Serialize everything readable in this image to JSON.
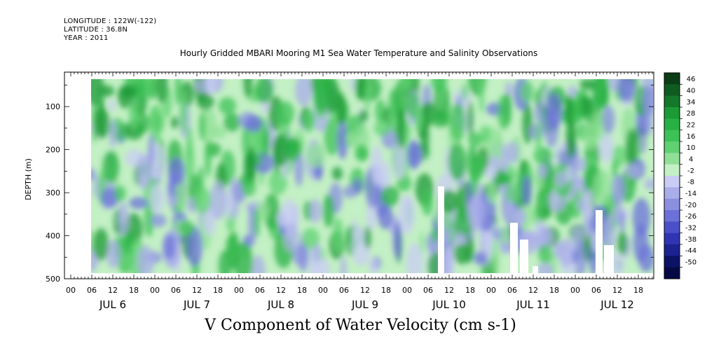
{
  "header": {
    "longitude": "LONGITUDE : 122W(-122)",
    "latitude": "LATITUDE : 36.8N",
    "year": "YEAR : 2011"
  },
  "chart_data": {
    "type": "heatmap",
    "title": "Hourly Gridded MBARI Mooring M1 Sea Water Temperature and Salinity Observations",
    "xlabel": "V Component of Water Velocity (cm s-1)",
    "ylabel": "DEPTH (m)",
    "ylim": [
      500,
      20
    ],
    "y_ticks": [
      100,
      200,
      300,
      400,
      500
    ],
    "x_hour_labels": [
      "00",
      "06",
      "12",
      "18",
      "00",
      "06",
      "12",
      "18",
      "00",
      "06",
      "12",
      "18",
      "00",
      "06",
      "12",
      "18",
      "00",
      "06",
      "12",
      "18",
      "00",
      "06",
      "12",
      "18",
      "00",
      "06",
      "12",
      "18"
    ],
    "x_day_labels": [
      "JUL 6",
      "JUL 7",
      "JUL 8",
      "JUL 9",
      "JUL 10",
      "JUL 11",
      "JUL 12"
    ],
    "colorbar": {
      "levels": [
        46,
        40,
        34,
        28,
        22,
        16,
        10,
        4,
        -2,
        -8,
        -14,
        -20,
        -26,
        -32,
        -38,
        -44,
        -50
      ],
      "colors": [
        "#0b3d16",
        "#0f5c20",
        "#14782a",
        "#1c9a36",
        "#27b043",
        "#3dc257",
        "#5fd172",
        "#8fe096",
        "#c3f0c4",
        "#c9cdf4",
        "#a9ade8",
        "#8a8fe0",
        "#6b71d8",
        "#4a50c8",
        "#2f35b2",
        "#1c228f",
        "#0c1266",
        "#050a45"
      ]
    },
    "data_start": "JUL 6 06",
    "data_end": "JUL 12 23"
  }
}
